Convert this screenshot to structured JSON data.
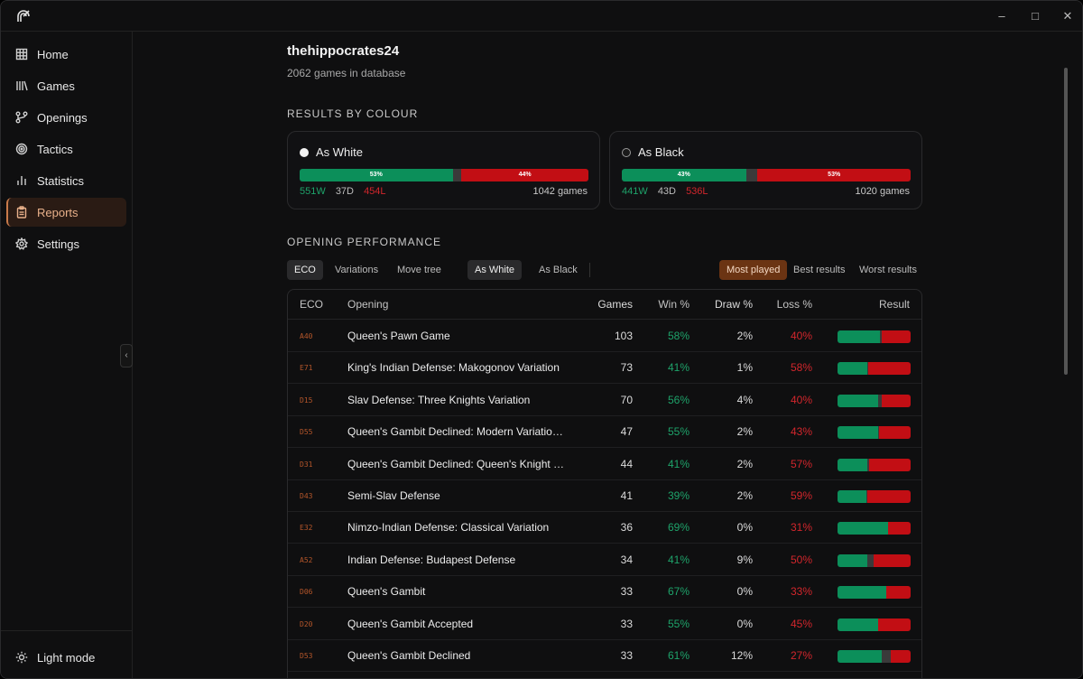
{
  "window": {
    "logo_icon": "app-logo-icon",
    "controls": [
      "minimize-icon",
      "maximize-icon",
      "close-icon"
    ]
  },
  "sidebar": {
    "items": [
      {
        "label": "Home",
        "icon": "grid-icon"
      },
      {
        "label": "Games",
        "icon": "library-icon"
      },
      {
        "label": "Openings",
        "icon": "branch-icon"
      },
      {
        "label": "Tactics",
        "icon": "target-icon"
      },
      {
        "label": "Statistics",
        "icon": "bar-chart-icon"
      },
      {
        "label": "Reports",
        "icon": "clipboard-icon",
        "active": true
      },
      {
        "label": "Settings",
        "icon": "gear-icon"
      }
    ],
    "theme_toggle": {
      "label": "Light mode",
      "icon": "sun-icon"
    }
  },
  "header": {
    "username": "thehippocrates24",
    "subtitle": "2062 games in database"
  },
  "results_by_colour": {
    "title": "RESULTS BY COLOUR",
    "white": {
      "label": "As White",
      "win_pct_label": "53%",
      "loss_pct_label": "44%",
      "win_frac": 0.53,
      "draw_frac": 0.03,
      "loss_frac": 0.44,
      "wins": "551W",
      "draws": "37D",
      "losses": "454L",
      "games": "1042 games"
    },
    "black": {
      "label": "As Black",
      "win_pct_label": "43%",
      "loss_pct_label": "53%",
      "win_frac": 0.43,
      "draw_frac": 0.04,
      "loss_frac": 0.53,
      "wins": "441W",
      "draws": "43D",
      "losses": "536L",
      "games": "1020 games"
    }
  },
  "opening_performance": {
    "title": "OPENING PERFORMANCE",
    "view_tabs": [
      "ECO",
      "Variations",
      "Move tree"
    ],
    "colour_tabs": [
      "As White",
      "As Black"
    ],
    "sort_tabs": [
      "Most played",
      "Best results",
      "Worst results"
    ],
    "columns": [
      "ECO",
      "Opening",
      "Games",
      "Win %",
      "Draw %",
      "Loss %",
      "Result"
    ],
    "rows": [
      {
        "eco": "A40",
        "opening": "Queen's Pawn Game",
        "games": "103",
        "win": "58%",
        "draw": "2%",
        "loss": "40%",
        "w": 58,
        "d": 2,
        "l": 40
      },
      {
        "eco": "E71",
        "opening": "King's Indian Defense: Makogonov Variation",
        "games": "73",
        "win": "41%",
        "draw": "1%",
        "loss": "58%",
        "w": 41,
        "d": 1,
        "l": 58
      },
      {
        "eco": "D15",
        "opening": "Slav Defense: Three Knights Variation",
        "games": "70",
        "win": "56%",
        "draw": "4%",
        "loss": "40%",
        "w": 56,
        "d": 4,
        "l": 40
      },
      {
        "eco": "D55",
        "opening": "Queen's Gambit Declined: Modern Variatio…",
        "games": "47",
        "win": "55%",
        "draw": "2%",
        "loss": "43%",
        "w": 55,
        "d": 2,
        "l": 43
      },
      {
        "eco": "D31",
        "opening": "Queen's Gambit Declined: Queen's Knight …",
        "games": "44",
        "win": "41%",
        "draw": "2%",
        "loss": "57%",
        "w": 41,
        "d": 2,
        "l": 57
      },
      {
        "eco": "D43",
        "opening": "Semi-Slav Defense",
        "games": "41",
        "win": "39%",
        "draw": "2%",
        "loss": "59%",
        "w": 39,
        "d": 2,
        "l": 59
      },
      {
        "eco": "E32",
        "opening": "Nimzo-Indian Defense: Classical Variation",
        "games": "36",
        "win": "69%",
        "draw": "0%",
        "loss": "31%",
        "w": 69,
        "d": 0,
        "l": 31
      },
      {
        "eco": "A52",
        "opening": "Indian Defense: Budapest Defense",
        "games": "34",
        "win": "41%",
        "draw": "9%",
        "loss": "50%",
        "w": 41,
        "d": 9,
        "l": 50
      },
      {
        "eco": "D06",
        "opening": "Queen's Gambit",
        "games": "33",
        "win": "67%",
        "draw": "0%",
        "loss": "33%",
        "w": 67,
        "d": 0,
        "l": 33
      },
      {
        "eco": "D20",
        "opening": "Queen's Gambit Accepted",
        "games": "33",
        "win": "55%",
        "draw": "0%",
        "loss": "45%",
        "w": 55,
        "d": 0,
        "l": 45
      },
      {
        "eco": "D53",
        "opening": "Queen's Gambit Declined",
        "games": "33",
        "win": "61%",
        "draw": "12%",
        "loss": "27%",
        "w": 61,
        "d": 12,
        "l": 27
      }
    ]
  },
  "colors": {
    "win": "#0c8f5a",
    "draw": "#3a3a3a",
    "loss": "#c20e14",
    "accent": "#c87a4a"
  }
}
